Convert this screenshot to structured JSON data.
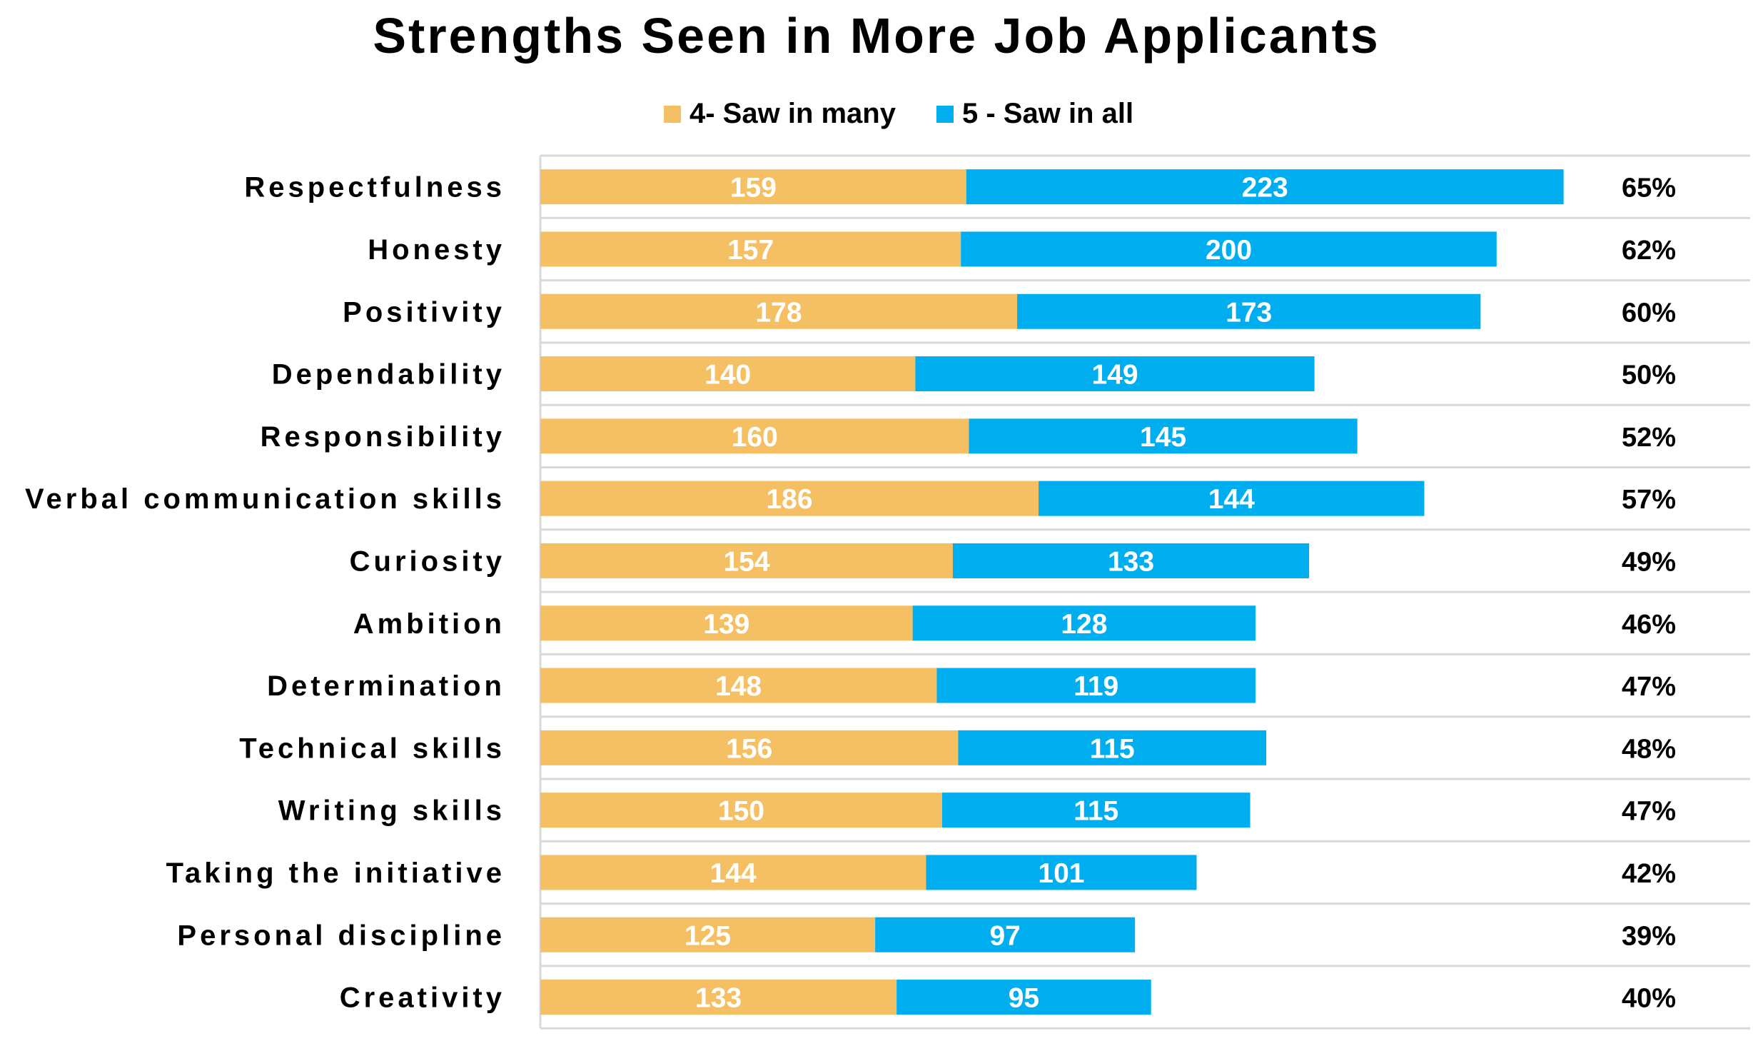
{
  "chart_data": {
    "type": "bar",
    "orientation": "horizontal",
    "stacked": true,
    "title": "Strengths Seen in More Job Applicants",
    "xlabel": "",
    "ylabel": "",
    "xlim": [
      0,
      400
    ],
    "legend_position": "top",
    "categories": [
      "Respectfulness",
      "Honesty",
      "Positivity",
      "Dependability",
      "Responsibility",
      "Verbal communication skills",
      "Curiosity",
      "Ambition",
      "Determination",
      "Technical skills",
      "Writing skills",
      "Taking the initiative",
      "Personal discipline",
      "Creativity"
    ],
    "series": [
      {
        "name": "4- Saw in many",
        "color": "#F5C063",
        "values": [
          159,
          157,
          178,
          140,
          160,
          186,
          154,
          139,
          148,
          156,
          150,
          144,
          125,
          133
        ]
      },
      {
        "name": "5 - Saw in all",
        "color": "#00AEEF",
        "values": [
          223,
          200,
          173,
          149,
          145,
          144,
          133,
          128,
          119,
          115,
          115,
          101,
          97,
          95
        ]
      }
    ],
    "percent_labels": [
      "65%",
      "62%",
      "60%",
      "50%",
      "52%",
      "57%",
      "49%",
      "46%",
      "47%",
      "48%",
      "47%",
      "42%",
      "39%",
      "40%"
    ],
    "gridline_color": "#D9D9D9"
  }
}
